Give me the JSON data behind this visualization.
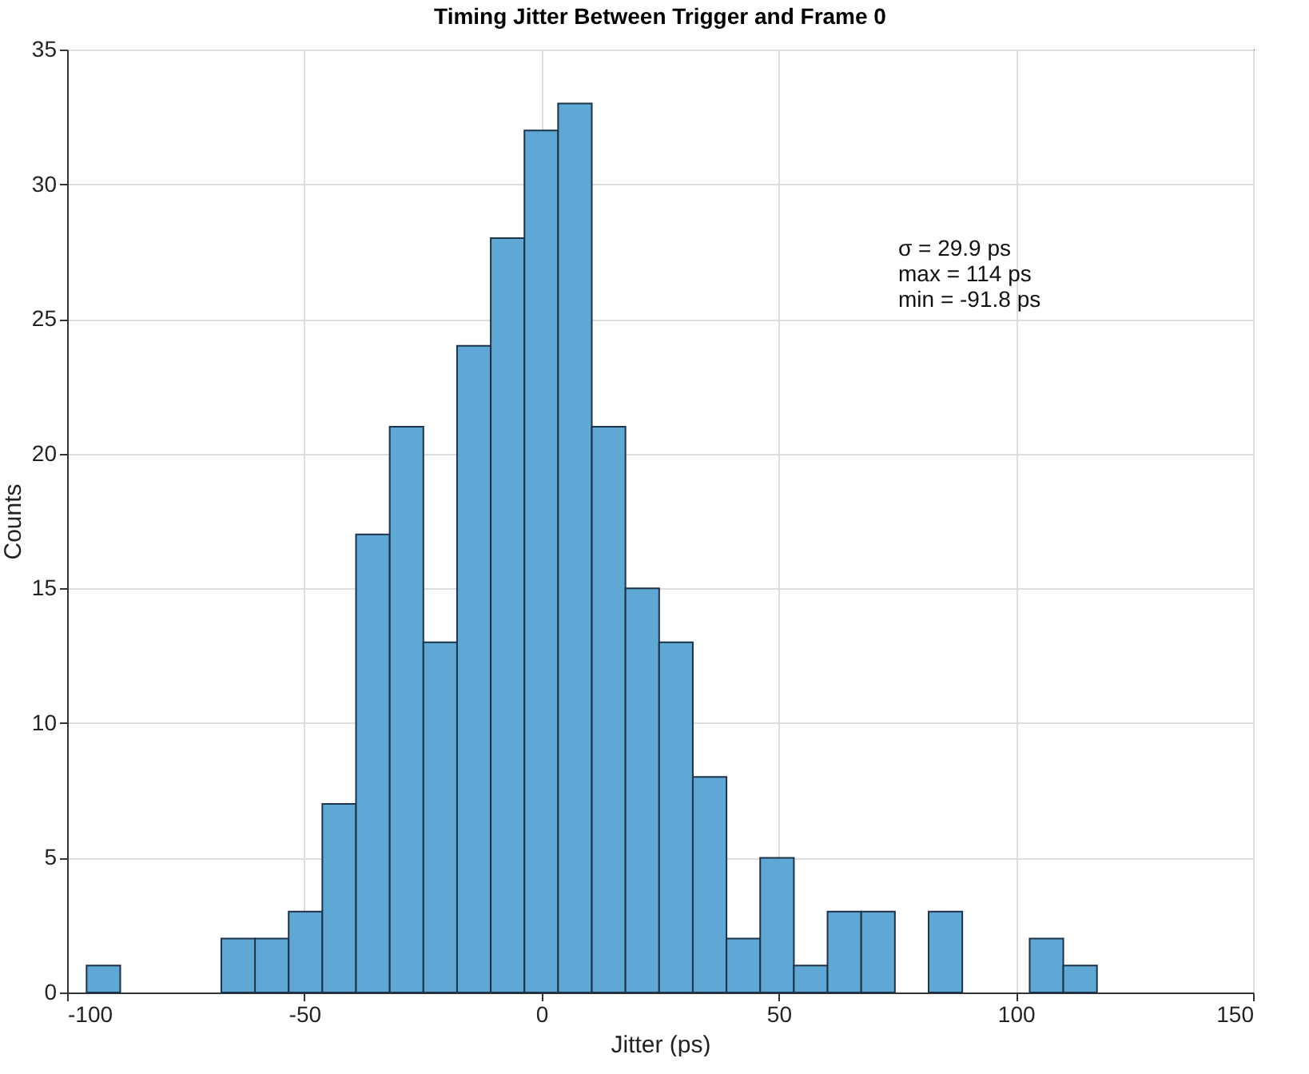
{
  "chart_data": {
    "type": "histogram",
    "title": "Timing Jitter Between Trigger and Frame 0",
    "xlabel": "Jitter (ps)",
    "ylabel": "Counts",
    "annotations": [
      "σ = 29.9 ps",
      "max = 114 ps",
      "min = -91.8 ps"
    ],
    "bins": [
      -95.9,
      -88.8,
      -81.7,
      -74.6,
      -67.5,
      -60.4,
      -53.3,
      -46.2,
      -39.1,
      -32.0,
      -24.9,
      -17.8,
      -10.7,
      -3.6,
      3.5,
      10.6,
      17.7,
      24.8,
      31.9,
      39.0,
      46.1,
      53.2,
      60.3,
      67.4,
      74.5,
      81.6,
      88.7,
      95.8,
      102.9,
      110.0,
      117.1
    ],
    "values": [
      1,
      0,
      0,
      0,
      2,
      2,
      3,
      7,
      17,
      21,
      13,
      24,
      28,
      32,
      33,
      21,
      15,
      13,
      8,
      2,
      5,
      1,
      3,
      3,
      0,
      3,
      0,
      0,
      2,
      1
    ],
    "color": "#5fa8d6",
    "xlim": [
      -100,
      150
    ],
    "xticks": [
      -100,
      -50,
      0,
      50,
      100,
      150
    ],
    "ylim": [
      0,
      35
    ],
    "yticks": [
      0,
      5,
      10,
      15,
      20,
      25,
      30,
      35
    ],
    "grid": true
  }
}
